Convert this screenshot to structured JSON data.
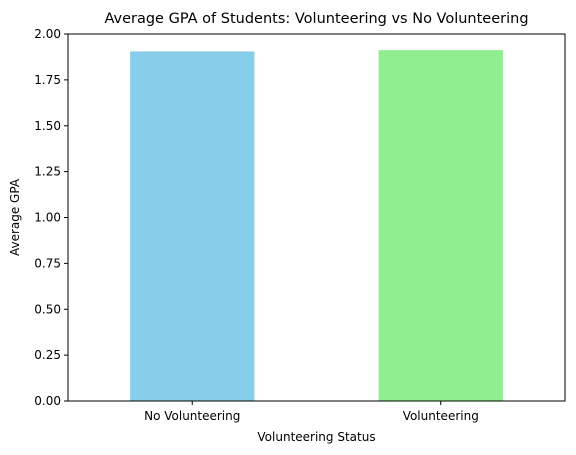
{
  "chart_data": {
    "type": "bar",
    "title": "Average GPA of Students: Volunteering vs No Volunteering",
    "xlabel": "Volunteering Status",
    "ylabel": "Average GPA",
    "categories": [
      "No Volunteering",
      "Volunteering"
    ],
    "values": [
      1.905,
      1.912
    ],
    "colors": [
      "#87ceeb",
      "#90ee90"
    ],
    "ylim": [
      0,
      2.0
    ],
    "yticks": [
      0.0,
      0.25,
      0.5,
      0.75,
      1.0,
      1.25,
      1.5,
      1.75,
      2.0
    ],
    "ytick_labels": [
      "0.00",
      "0.25",
      "0.50",
      "0.75",
      "1.00",
      "1.25",
      "1.50",
      "1.75",
      "2.00"
    ],
    "grid": false,
    "legend": "none"
  }
}
